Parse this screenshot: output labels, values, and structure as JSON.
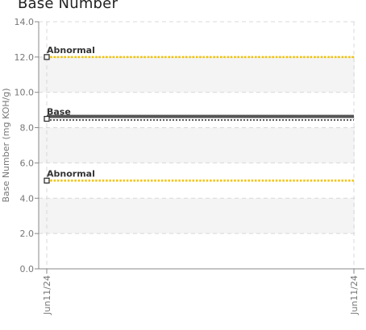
{
  "chart_data": {
    "type": "line",
    "title": "Base Number",
    "ylabel": "Base Number (mg KOH/g)",
    "xlabel": "",
    "ylim": [
      0,
      14
    ],
    "yticks": [
      0.0,
      2.0,
      4.0,
      6.0,
      8.0,
      10.0,
      12.0,
      14.0
    ],
    "ytick_labels": [
      "0.0",
      "2.0",
      "4.0",
      "6.0",
      "8.0",
      "10.0",
      "12.0",
      "14.0"
    ],
    "x_categories": [
      "Jun11/24",
      "Jun11/24"
    ],
    "grid": true,
    "alternating_bands": true,
    "series": [
      {
        "name": "Abnormal",
        "kind": "limit",
        "values": [
          12.0,
          12.0
        ],
        "color": "#f2c200",
        "style": "dotted"
      },
      {
        "name": "Base",
        "kind": "reference",
        "values": [
          8.5,
          8.5
        ],
        "color": "#555555",
        "style": "double"
      },
      {
        "name": "Abnormal",
        "kind": "limit",
        "values": [
          5.0,
          5.0
        ],
        "color": "#f2c200",
        "style": "dotted"
      }
    ]
  },
  "colors": {
    "grid": "#d8d8d8",
    "band": "#f4f4f4",
    "axis": "#888888",
    "text": "#777777"
  }
}
